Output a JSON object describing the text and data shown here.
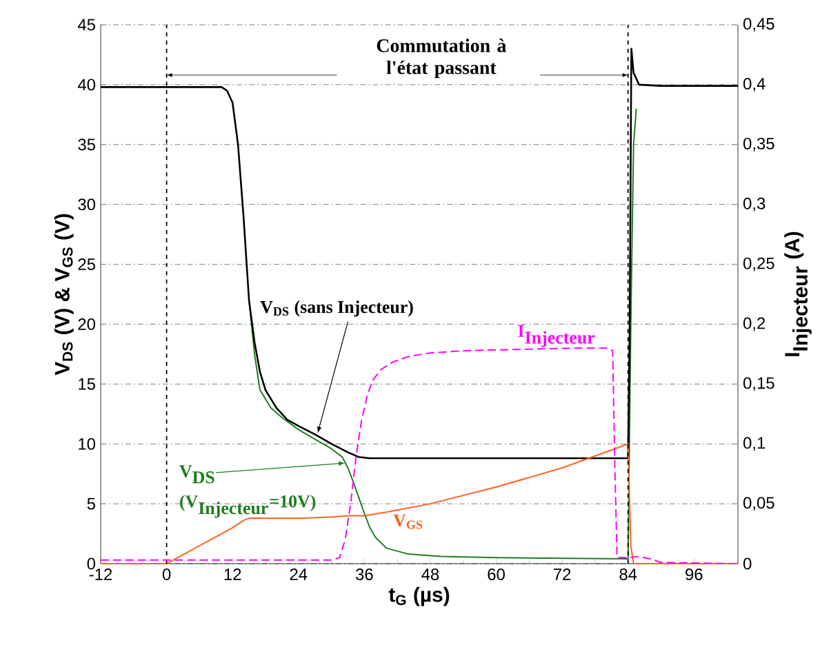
{
  "chart_data": {
    "type": "line",
    "xlabel": "t$_{G}$ (µs)",
    "ylabel": "V$_{DS}$ (V) & V$_{GS}$ (V)",
    "y2label": "\\textbf{I}_{\\textbf{Injecteur}}\\textbf{ (A)}",
    "annotations": [
      "Commutation à l'état passant"
    ],
    "xlim": [
      -12,
      104
    ],
    "xticks": [
      -12,
      0,
      12,
      24,
      36,
      48,
      60,
      72,
      84,
      96
    ],
    "ylim": [
      0,
      45
    ],
    "yticks": [
      0,
      5,
      10,
      15,
      20,
      25,
      30,
      35,
      40,
      45
    ],
    "y2lim": [
      0,
      0.45
    ],
    "y2ticks": [
      0,
      {
        "value": 0.05,
        "label": "0,05"
      },
      {
        "value": 0.1,
        "label": "0,1"
      },
      {
        "value": 0.15,
        "label": "0,15"
      },
      {
        "value": 0.2,
        "label": "0,2"
      },
      {
        "value": 0.25,
        "label": "0,25"
      },
      {
        "value": 0.3,
        "label": "0,3"
      },
      {
        "value": 0.35,
        "label": "0,35"
      },
      {
        "value": 0.4,
        "label": "0,4"
      },
      {
        "value": 0.45,
        "label": "0,45"
      }
    ],
    "grid": "y",
    "marker": "none",
    "ref_lines": [
      {
        "axis": "x",
        "value": 0,
        "color": "#000000",
        "line_style": "dashed"
      },
      {
        "axis": "x",
        "value": 84,
        "color": "#000000",
        "line_style": "dashed"
      }
    ],
    "series": [
      {
        "name": "\\begin{array}{l}\\textbf{V}_{\\textbf{DS}}\\\\[4pt] \\textbf{(V}_{\\textbf{Injecteur}}\\textbf{=10V)}\\end{array}",
        "color": "#1e7d1e",
        "line_style": "solid",
        "x": [
          15,
          16,
          17,
          19,
          21,
          24,
          27,
          30,
          32,
          33,
          34,
          35,
          36,
          37,
          38,
          40,
          44,
          50,
          60,
          84,
          84.5,
          85,
          85.5
        ],
        "values": [
          22,
          17.5,
          14.5,
          13,
          12.2,
          11.2,
          10.4,
          9.6,
          8.9,
          8,
          6.8,
          5.5,
          4.2,
          3,
          2.2,
          1.3,
          0.8,
          0.6,
          0.5,
          0.4,
          20,
          35,
          38
        ]
      },
      {
        "name": "V$_{DS}$ (sans Injecteur)",
        "color": "#000000",
        "line_style": "solid",
        "x": [
          -12,
          0,
          10,
          11,
          12,
          13,
          14,
          15,
          16,
          17,
          18,
          20,
          22,
          24,
          27,
          30,
          33,
          35,
          37,
          40,
          60,
          84,
          84.3,
          84.6,
          85,
          86,
          90,
          104
        ],
        "values": [
          39.8,
          39.8,
          39.8,
          39.5,
          38.5,
          35,
          29,
          22,
          18.5,
          16,
          14.5,
          13,
          12,
          11.5,
          10.8,
          10,
          9.3,
          8.9,
          8.8,
          8.8,
          8.8,
          8.8,
          20,
          43,
          41,
          40,
          39.9,
          39.9
        ]
      },
      {
        "name": "V$_{GS}$",
        "color": "#ff6020",
        "line_style": "solid",
        "x": [
          -12,
          0,
          4,
          8,
          12,
          14,
          15,
          20,
          25,
          30,
          33,
          36,
          40,
          48,
          60,
          72,
          84,
          84.5,
          85,
          104
        ],
        "values": [
          0,
          0,
          1,
          2,
          3,
          3.6,
          3.8,
          3.8,
          3.8,
          3.9,
          4,
          4,
          4.3,
          5,
          6.4,
          8,
          10,
          1.5,
          0,
          0
        ]
      },
      {
        "name": "\\textbf{I}_{\\textbf{Injecteur}}",
        "color": "#ff00ff",
        "line_style": "dashed",
        "axis": "y2",
        "x": [
          -12,
          0,
          30,
          31.5,
          32.5,
          33.5,
          34.5,
          35.5,
          36.5,
          37.5,
          39,
          41,
          44,
          48,
          55,
          65,
          75,
          80,
          81.2,
          81.6,
          82,
          84,
          86,
          88,
          90,
          104
        ],
        "values": [
          0.003,
          0.003,
          0.003,
          0.005,
          0.02,
          0.05,
          0.09,
          0.12,
          0.14,
          0.153,
          0.162,
          0.168,
          0.173,
          0.176,
          0.178,
          0.179,
          0.18,
          0.18,
          0.178,
          0.08,
          0.005,
          0.005,
          0.006,
          0.004,
          0.001,
          0
        ]
      }
    ]
  }
}
